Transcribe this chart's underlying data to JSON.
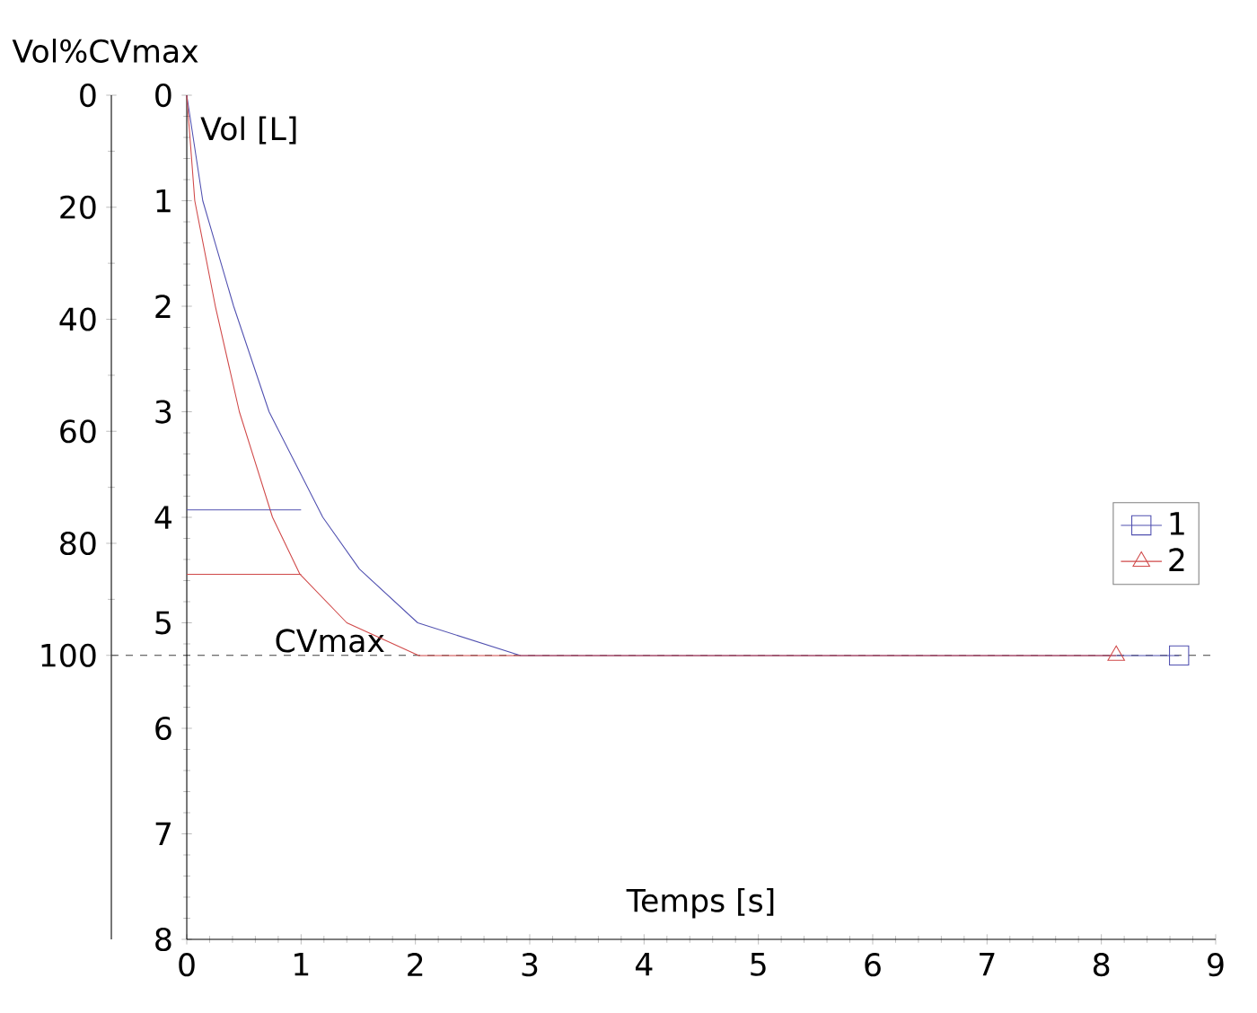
{
  "chart_data": {
    "type": "line",
    "xlabel": "Temps [s]",
    "ylabel": "Vol [L]",
    "y2label": "Vol%CVmax",
    "xlim": [
      0,
      9
    ],
    "xticks": [
      0,
      1,
      2,
      3,
      4,
      5,
      6,
      7,
      8,
      9
    ],
    "ylim": [
      8,
      0
    ],
    "yticks": [
      0,
      1,
      2,
      3,
      4,
      5,
      6,
      7,
      8
    ],
    "y2lim": [
      150.7,
      0
    ],
    "y2ticks": [
      0,
      20,
      40,
      60,
      80,
      100
    ],
    "legend": "right",
    "line_style": "solid",
    "ref_lines": [
      {
        "axis": "y2",
        "value": 100,
        "label": "CVmax",
        "color": "#404040",
        "line_style": "dashed"
      }
    ],
    "series": [
      {
        "name": "1",
        "color": "#5050b0",
        "x": [
          0,
          0.14,
          0.41,
          0.72,
          1.19,
          1.51,
          2.02,
          2.92,
          8.68
        ],
        "values": [
          0,
          1,
          2,
          3,
          4,
          4.49,
          5,
          5.31,
          5.31
        ]
      },
      {
        "name": "2",
        "color": "#d04848",
        "x": [
          0,
          0.07,
          0.25,
          0.46,
          0.75,
          0.99,
          1.4,
          2.03,
          8.13
        ],
        "values": [
          0,
          1,
          2,
          3,
          4,
          4.54,
          5,
          5.31,
          5.31
        ]
      },
      {
        "color": "#5050b0",
        "x": [
          0,
          1
        ],
        "values": [
          3.93,
          3.93
        ]
      },
      {
        "color": "#d04848",
        "x": [
          0,
          1
        ],
        "values": [
          4.54,
          4.54
        ]
      },
      {
        "type": "scatter",
        "color": "#5050b0",
        "marker": "square",
        "x": [
          8.68
        ],
        "values": [
          5.31
        ]
      },
      {
        "type": "scatter",
        "color": "#d04848",
        "marker": "triangle",
        "x": [
          8.13
        ],
        "values": [
          5.31
        ]
      }
    ]
  }
}
